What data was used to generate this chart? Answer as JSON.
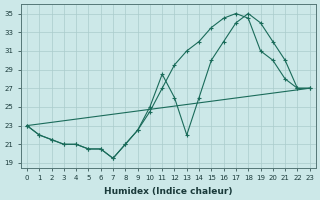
{
  "xlabel": "Humidex (Indice chaleur)",
  "bg_color": "#cce8e8",
  "grid_color": "#aacccc",
  "line_color": "#1a6b5a",
  "xlim": [
    -0.5,
    23.5
  ],
  "ylim": [
    18.5,
    36.0
  ],
  "xticks": [
    0,
    1,
    2,
    3,
    4,
    5,
    6,
    7,
    8,
    9,
    10,
    11,
    12,
    13,
    14,
    15,
    16,
    17,
    18,
    19,
    20,
    21,
    22,
    23
  ],
  "yticks": [
    19,
    21,
    23,
    25,
    27,
    29,
    31,
    33,
    35
  ],
  "curve1_x": [
    0,
    1,
    2,
    3,
    4,
    5,
    6,
    7,
    8,
    9,
    10,
    11,
    12,
    13,
    14,
    15,
    16,
    17,
    18,
    19,
    20,
    21,
    22,
    23
  ],
  "curve1_y": [
    23,
    22,
    21.5,
    21,
    21,
    20.5,
    20.5,
    19.5,
    21,
    22.5,
    25,
    28.5,
    26,
    22,
    26,
    30,
    32,
    34,
    35,
    34,
    32,
    30,
    27,
    27
  ],
  "curve2_x": [
    0,
    1,
    2,
    3,
    4,
    5,
    6,
    7,
    8,
    9,
    10,
    11,
    12,
    13,
    14,
    15,
    16,
    17,
    18,
    19,
    20,
    21,
    22,
    23
  ],
  "curve2_y": [
    23,
    22,
    21.5,
    21,
    21,
    20.5,
    20.5,
    19.5,
    21,
    22.5,
    24.5,
    27,
    29.5,
    31,
    32,
    33.5,
    34.5,
    35,
    34.5,
    31,
    30,
    28,
    27,
    27
  ],
  "line3_x": [
    0,
    23
  ],
  "line3_y": [
    23,
    27
  ]
}
